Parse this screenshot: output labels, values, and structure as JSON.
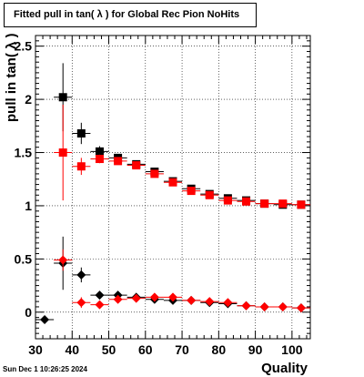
{
  "chart_data": {
    "type": "scatter",
    "title": "Fitted pull in tan( λ ) for Global Rec Pion NoHits",
    "xlabel": "Quality",
    "ylabel": "pull in tan( λ )",
    "timestamp": "Sun Dec  1 10:26:25 2024",
    "xlim": [
      30,
      105
    ],
    "ylim": [
      -0.25,
      2.6
    ],
    "x_ticks": [
      30,
      40,
      50,
      60,
      70,
      80,
      90,
      100
    ],
    "y_ticks": [
      0,
      0.5,
      1,
      1.5,
      2,
      2.5
    ],
    "y_tick_labels": [
      "0",
      "0.5",
      "1",
      "1.5",
      "2",
      "2.5"
    ],
    "grid": true,
    "series": [
      {
        "marker": "square",
        "color": "#000000",
        "points": [
          {
            "x": 37.5,
            "y": 2.02,
            "err": 0.32
          },
          {
            "x": 42.5,
            "y": 1.68,
            "err": 0.1
          },
          {
            "x": 47.5,
            "y": 1.51,
            "err": 0.05
          },
          {
            "x": 52.5,
            "y": 1.45,
            "err": 0.03
          },
          {
            "x": 57.5,
            "y": 1.39,
            "err": 0.02
          },
          {
            "x": 62.5,
            "y": 1.32,
            "err": 0.02
          },
          {
            "x": 67.5,
            "y": 1.23,
            "err": 0.02
          },
          {
            "x": 72.5,
            "y": 1.16,
            "err": 0.02
          },
          {
            "x": 77.5,
            "y": 1.11,
            "err": 0.02
          },
          {
            "x": 82.5,
            "y": 1.07,
            "err": 0.02
          },
          {
            "x": 87.5,
            "y": 1.05,
            "err": 0.02
          },
          {
            "x": 92.5,
            "y": 1.02,
            "err": 0.02
          },
          {
            "x": 97.5,
            "y": 1.01,
            "err": 0.02
          },
          {
            "x": 102.5,
            "y": 1.01,
            "err": 0.02
          }
        ]
      },
      {
        "marker": "square",
        "color": "#ff0000",
        "points": [
          {
            "x": 37.5,
            "y": 1.5,
            "err": 0.45
          },
          {
            "x": 42.5,
            "y": 1.37,
            "err": 0.08
          },
          {
            "x": 47.5,
            "y": 1.44,
            "err": 0.04
          },
          {
            "x": 52.5,
            "y": 1.42,
            "err": 0.03
          },
          {
            "x": 57.5,
            "y": 1.38,
            "err": 0.02
          },
          {
            "x": 62.5,
            "y": 1.3,
            "err": 0.02
          },
          {
            "x": 67.5,
            "y": 1.22,
            "err": 0.02
          },
          {
            "x": 72.5,
            "y": 1.14,
            "err": 0.02
          },
          {
            "x": 77.5,
            "y": 1.1,
            "err": 0.02
          },
          {
            "x": 82.5,
            "y": 1.05,
            "err": 0.02
          },
          {
            "x": 87.5,
            "y": 1.04,
            "err": 0.02
          },
          {
            "x": 92.5,
            "y": 1.02,
            "err": 0.02
          },
          {
            "x": 97.5,
            "y": 1.02,
            "err": 0.02
          },
          {
            "x": 102.5,
            "y": 1.01,
            "err": 0.02
          }
        ]
      },
      {
        "marker": "diamond",
        "color": "#000000",
        "points": [
          {
            "x": 32.5,
            "y": -0.07,
            "err": 0.03
          },
          {
            "x": 37.5,
            "y": 0.46,
            "err": 0.25
          },
          {
            "x": 42.5,
            "y": 0.35,
            "err": 0.07
          },
          {
            "x": 47.5,
            "y": 0.16,
            "err": 0.03
          },
          {
            "x": 52.5,
            "y": 0.16,
            "err": 0.02
          },
          {
            "x": 57.5,
            "y": 0.14,
            "err": 0.02
          },
          {
            "x": 62.5,
            "y": 0.12,
            "err": 0.02
          },
          {
            "x": 67.5,
            "y": 0.11,
            "err": 0.02
          },
          {
            "x": 72.5,
            "y": 0.11,
            "err": 0.02
          },
          {
            "x": 77.5,
            "y": 0.09,
            "err": 0.02
          },
          {
            "x": 82.5,
            "y": 0.08,
            "err": 0.02
          },
          {
            "x": 87.5,
            "y": 0.06,
            "err": 0.02
          },
          {
            "x": 92.5,
            "y": 0.05,
            "err": 0.02
          },
          {
            "x": 97.5,
            "y": 0.05,
            "err": 0.02
          },
          {
            "x": 102.5,
            "y": 0.04,
            "err": 0.02
          }
        ]
      },
      {
        "marker": "diamond",
        "color": "#ff0000",
        "points": [
          {
            "x": 37.5,
            "y": 0.49,
            "err": 0.1
          },
          {
            "x": 42.5,
            "y": 0.09,
            "err": 0.05
          },
          {
            "x": 47.5,
            "y": 0.07,
            "err": 0.03
          },
          {
            "x": 52.5,
            "y": 0.12,
            "err": 0.02
          },
          {
            "x": 57.5,
            "y": 0.13,
            "err": 0.02
          },
          {
            "x": 62.5,
            "y": 0.14,
            "err": 0.02
          },
          {
            "x": 67.5,
            "y": 0.14,
            "err": 0.02
          },
          {
            "x": 72.5,
            "y": 0.11,
            "err": 0.02
          },
          {
            "x": 77.5,
            "y": 0.1,
            "err": 0.02
          },
          {
            "x": 82.5,
            "y": 0.09,
            "err": 0.02
          },
          {
            "x": 87.5,
            "y": 0.06,
            "err": 0.02
          },
          {
            "x": 92.5,
            "y": 0.05,
            "err": 0.02
          },
          {
            "x": 97.5,
            "y": 0.05,
            "err": 0.02
          },
          {
            "x": 102.5,
            "y": 0.04,
            "err": 0.02
          }
        ]
      }
    ]
  }
}
